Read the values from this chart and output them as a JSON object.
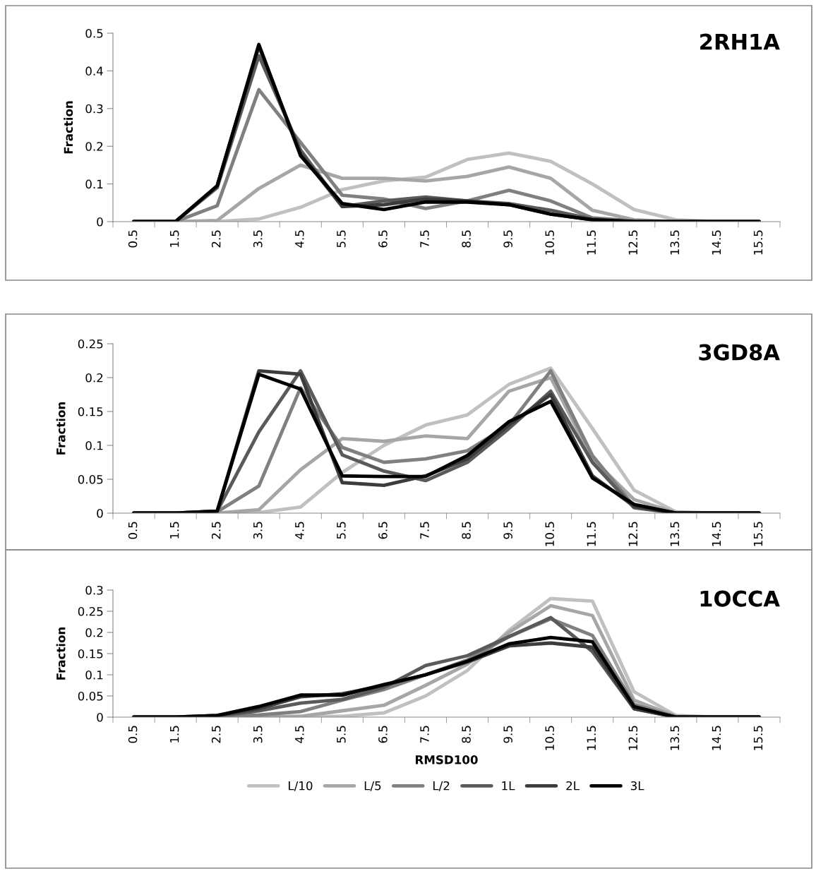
{
  "chart_data": [
    {
      "type": "line",
      "title": "2RH1A",
      "ylabel": "Fraction",
      "categories": [
        "0.5",
        "1.5",
        "2.5",
        "3.5",
        "4.5",
        "5.5",
        "6.5",
        "7.5",
        "8.5",
        "9.5",
        "10.5",
        "11.5",
        "12.5",
        "13.5",
        "14.5",
        "15.5"
      ],
      "ylim": [
        0,
        0.5
      ],
      "yticks": [
        0,
        0.1,
        0.2,
        0.3,
        0.4,
        0.5
      ],
      "grid": false,
      "legend": false,
      "marker": "none",
      "line_style": "solid",
      "series": [
        {
          "color": "#c0c0c0",
          "values": [
            0,
            0,
            0,
            0.007,
            0.038,
            0.085,
            0.108,
            0.118,
            0.165,
            0.182,
            0.16,
            0.1,
            0.032,
            0.005,
            0,
            0
          ]
        },
        {
          "color": "#a6a6a6",
          "values": [
            0,
            0,
            0.003,
            0.088,
            0.15,
            0.115,
            0.115,
            0.108,
            0.12,
            0.145,
            0.115,
            0.03,
            0.005,
            0,
            0,
            0
          ]
        },
        {
          "color": "#808080",
          "values": [
            0,
            0,
            0.042,
            0.35,
            0.21,
            0.07,
            0.06,
            0.035,
            0.055,
            0.083,
            0.055,
            0.01,
            0.002,
            0,
            0,
            0
          ]
        },
        {
          "color": "#5a5a5a",
          "values": [
            0,
            0,
            0.09,
            0.44,
            0.19,
            0.04,
            0.055,
            0.065,
            0.055,
            0.048,
            0.03,
            0.007,
            0,
            0,
            0,
            0
          ]
        },
        {
          "color": "#3c3c3c",
          "values": [
            0,
            0,
            0.095,
            0.465,
            0.18,
            0.04,
            0.045,
            0.06,
            0.055,
            0.045,
            0.02,
            0.005,
            0,
            0,
            0,
            0
          ]
        },
        {
          "color": "#000000",
          "values": [
            0,
            0,
            0.095,
            0.47,
            0.175,
            0.048,
            0.032,
            0.052,
            0.052,
            0.045,
            0.02,
            0.005,
            0,
            0,
            0,
            0
          ]
        }
      ]
    },
    {
      "type": "line",
      "title": "3GD8A",
      "ylabel": "Fraction",
      "categories": [
        "0.5",
        "1.5",
        "2.5",
        "3.5",
        "4.5",
        "5.5",
        "6.5",
        "7.5",
        "8.5",
        "9.5",
        "10.5",
        "11.5",
        "12.5",
        "13.5",
        "14.5",
        "15.5"
      ],
      "ylim": [
        0,
        0.25
      ],
      "yticks": [
        0,
        0.05,
        0.1,
        0.15,
        0.2,
        0.25
      ],
      "grid": false,
      "legend": false,
      "marker": "none",
      "line_style": "solid",
      "series": [
        {
          "color": "#c0c0c0",
          "values": [
            0,
            0,
            0,
            0.001,
            0.009,
            0.06,
            0.1,
            0.13,
            0.145,
            0.19,
            0.214,
            0.125,
            0.034,
            0.002,
            0,
            0
          ]
        },
        {
          "color": "#a6a6a6",
          "values": [
            0,
            0,
            0,
            0.005,
            0.064,
            0.11,
            0.106,
            0.114,
            0.11,
            0.18,
            0.2,
            0.08,
            0.02,
            0.001,
            0,
            0
          ]
        },
        {
          "color": "#808080",
          "values": [
            0,
            0,
            0.002,
            0.04,
            0.185,
            0.097,
            0.075,
            0.08,
            0.092,
            0.13,
            0.21,
            0.085,
            0.01,
            0,
            0,
            0
          ]
        },
        {
          "color": "#5a5a5a",
          "values": [
            0,
            0,
            0.003,
            0.12,
            0.21,
            0.086,
            0.062,
            0.048,
            0.075,
            0.125,
            0.18,
            0.075,
            0.008,
            0,
            0,
            0
          ]
        },
        {
          "color": "#3c3c3c",
          "values": [
            0,
            0,
            0.003,
            0.21,
            0.205,
            0.045,
            0.041,
            0.055,
            0.08,
            0.13,
            0.175,
            0.055,
            0.01,
            0,
            0,
            0
          ]
        },
        {
          "color": "#000000",
          "values": [
            0,
            0,
            0.003,
            0.205,
            0.183,
            0.055,
            0.054,
            0.054,
            0.085,
            0.135,
            0.165,
            0.052,
            0.013,
            0,
            0,
            0
          ]
        }
      ]
    },
    {
      "type": "line",
      "title": "1OCCA",
      "ylabel": "Fraction",
      "xlabel": "RMSD100",
      "categories": [
        "0.5",
        "1.5",
        "2.5",
        "3.5",
        "4.5",
        "5.5",
        "6.5",
        "7.5",
        "8.5",
        "9.5",
        "10.5",
        "11.5",
        "12.5",
        "13.5",
        "14.5",
        "15.5"
      ],
      "ylim": [
        0,
        0.3
      ],
      "yticks": [
        0,
        0.05,
        0.1,
        0.15,
        0.2,
        0.25,
        0.3
      ],
      "grid": false,
      "legend": "bottom",
      "marker": "none",
      "line_style": "solid",
      "series": [
        {
          "name": "L/10",
          "color": "#c0c0c0",
          "values": [
            0,
            0,
            0,
            0,
            0,
            0.002,
            0.01,
            0.05,
            0.11,
            0.205,
            0.28,
            0.274,
            0.06,
            0.004,
            0,
            0
          ]
        },
        {
          "name": "L/5",
          "color": "#a6a6a6",
          "values": [
            0,
            0,
            0,
            0,
            0.002,
            0.015,
            0.028,
            0.075,
            0.125,
            0.2,
            0.263,
            0.24,
            0.04,
            0.002,
            0,
            0
          ]
        },
        {
          "name": "L/2",
          "color": "#808080",
          "values": [
            0,
            0,
            0.001,
            0.005,
            0.013,
            0.04,
            0.065,
            0.1,
            0.135,
            0.19,
            0.232,
            0.193,
            0.03,
            0.001,
            0,
            0
          ]
        },
        {
          "name": "1L",
          "color": "#5a5a5a",
          "values": [
            0,
            0,
            0.002,
            0.015,
            0.033,
            0.042,
            0.07,
            0.122,
            0.145,
            0.19,
            0.235,
            0.155,
            0.02,
            0,
            0,
            0
          ]
        },
        {
          "name": "2L",
          "color": "#3c3c3c",
          "values": [
            0,
            0,
            0.004,
            0.02,
            0.048,
            0.055,
            0.075,
            0.1,
            0.13,
            0.168,
            0.175,
            0.165,
            0.02,
            0,
            0,
            0
          ]
        },
        {
          "name": "3L",
          "color": "#000000",
          "values": [
            0,
            0,
            0.004,
            0.025,
            0.052,
            0.052,
            0.077,
            0.1,
            0.132,
            0.173,
            0.188,
            0.178,
            0.025,
            0,
            0,
            0
          ]
        }
      ]
    }
  ]
}
